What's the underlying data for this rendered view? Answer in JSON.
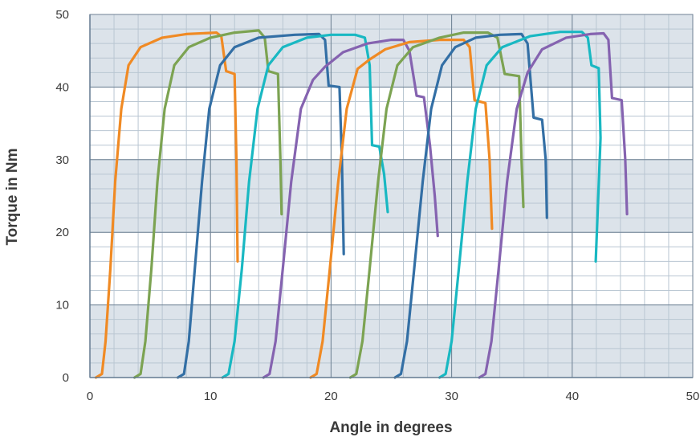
{
  "chart_data": {
    "type": "line",
    "title": "",
    "xlabel": "Angle in degrees",
    "ylabel": "Torque in Nm",
    "xlim": [
      0,
      50
    ],
    "ylim": [
      0,
      50
    ],
    "x_ticks": [
      "0",
      "10",
      "20",
      "30",
      "40",
      "50"
    ],
    "y_ticks": [
      "0",
      "10",
      "20",
      "30",
      "40",
      "50"
    ],
    "grid": true,
    "legend": "none",
    "colors": {
      "band": "#dce3ea",
      "grid_major": "#6f8294",
      "grid_minor": "#b9c6d2",
      "orange": "#f08a24",
      "green": "#7ca352",
      "blue": "#336fa5",
      "teal": "#19b8c2",
      "purple": "#8563b0"
    },
    "series": [
      {
        "color": "orange",
        "points": [
          [
            0.5,
            0
          ],
          [
            1.0,
            0.5
          ],
          [
            1.3,
            5
          ],
          [
            1.7,
            15
          ],
          [
            2.1,
            27
          ],
          [
            2.6,
            37
          ],
          [
            3.2,
            43
          ],
          [
            4.2,
            45.5
          ],
          [
            6,
            46.8
          ],
          [
            8,
            47.3
          ],
          [
            10.5,
            47.5
          ],
          [
            10.9,
            47
          ],
          [
            11.3,
            42.2
          ],
          [
            12.0,
            41.8
          ],
          [
            12.15,
            30
          ],
          [
            12.25,
            16
          ]
        ]
      },
      {
        "color": "green",
        "points": [
          [
            3.7,
            0
          ],
          [
            4.2,
            0.5
          ],
          [
            4.6,
            5
          ],
          [
            5.1,
            15
          ],
          [
            5.6,
            27
          ],
          [
            6.2,
            37
          ],
          [
            7.0,
            43
          ],
          [
            8.2,
            45.5
          ],
          [
            10,
            46.8
          ],
          [
            12,
            47.5
          ],
          [
            14,
            47.8
          ],
          [
            14.5,
            46.8
          ],
          [
            14.8,
            42.2
          ],
          [
            15.6,
            41.8
          ],
          [
            15.8,
            30
          ],
          [
            15.9,
            22.5
          ]
        ]
      },
      {
        "color": "blue",
        "points": [
          [
            7.3,
            0
          ],
          [
            7.8,
            0.5
          ],
          [
            8.2,
            5
          ],
          [
            8.7,
            15
          ],
          [
            9.3,
            27
          ],
          [
            9.9,
            37
          ],
          [
            10.8,
            43
          ],
          [
            12,
            45.5
          ],
          [
            14,
            46.8
          ],
          [
            17,
            47.2
          ],
          [
            19,
            47.3
          ],
          [
            19.5,
            46.5
          ],
          [
            19.8,
            40.2
          ],
          [
            20.7,
            40
          ],
          [
            20.9,
            30
          ],
          [
            21.05,
            17
          ]
        ]
      },
      {
        "color": "teal",
        "points": [
          [
            11.0,
            0
          ],
          [
            11.5,
            0.5
          ],
          [
            12.0,
            5
          ],
          [
            12.6,
            15
          ],
          [
            13.2,
            27
          ],
          [
            13.9,
            37
          ],
          [
            14.8,
            43
          ],
          [
            16,
            45.5
          ],
          [
            18,
            46.8
          ],
          [
            20,
            47.2
          ],
          [
            22,
            47.2
          ],
          [
            22.8,
            46.8
          ],
          [
            23.2,
            43
          ],
          [
            23.4,
            32
          ],
          [
            24,
            31.8
          ],
          [
            24.4,
            28
          ],
          [
            24.7,
            22.8
          ]
        ]
      },
      {
        "color": "purple",
        "points": [
          [
            14.4,
            0
          ],
          [
            14.9,
            0.5
          ],
          [
            15.4,
            5
          ],
          [
            16,
            15
          ],
          [
            16.7,
            27
          ],
          [
            17.5,
            37
          ],
          [
            18.5,
            41
          ],
          [
            19.5,
            42.8
          ],
          [
            21,
            44.8
          ],
          [
            23,
            46
          ],
          [
            25,
            46.5
          ],
          [
            26,
            46.5
          ],
          [
            26.5,
            45
          ],
          [
            27.1,
            38.8
          ],
          [
            27.7,
            38.6
          ],
          [
            28.2,
            32
          ],
          [
            28.6,
            25
          ],
          [
            28.85,
            19.5
          ]
        ]
      },
      {
        "color": "orange",
        "points": [
          [
            18.3,
            0
          ],
          [
            18.8,
            0.5
          ],
          [
            19.3,
            5
          ],
          [
            19.9,
            15
          ],
          [
            20.6,
            27
          ],
          [
            21.3,
            37
          ],
          [
            22.2,
            42.5
          ],
          [
            23.2,
            43.8
          ],
          [
            24.5,
            45.2
          ],
          [
            26.5,
            46.2
          ],
          [
            29,
            46.5
          ],
          [
            31,
            46.5
          ],
          [
            31.5,
            45.5
          ],
          [
            31.9,
            38.2
          ],
          [
            32.8,
            37.8
          ],
          [
            33.15,
            30
          ],
          [
            33.35,
            20.5
          ]
        ]
      },
      {
        "color": "green",
        "points": [
          [
            21.6,
            0
          ],
          [
            22.1,
            0.5
          ],
          [
            22.6,
            5
          ],
          [
            23.2,
            15
          ],
          [
            23.9,
            27
          ],
          [
            24.6,
            37
          ],
          [
            25.5,
            43
          ],
          [
            26.8,
            45.5
          ],
          [
            29,
            46.8
          ],
          [
            31,
            47.5
          ],
          [
            33,
            47.5
          ],
          [
            33.8,
            46.8
          ],
          [
            34.4,
            41.8
          ],
          [
            35.6,
            41.5
          ],
          [
            35.8,
            30
          ],
          [
            35.95,
            23.5
          ]
        ]
      },
      {
        "color": "blue",
        "points": [
          [
            25.3,
            0
          ],
          [
            25.8,
            0.5
          ],
          [
            26.3,
            5
          ],
          [
            26.9,
            15
          ],
          [
            27.6,
            27
          ],
          [
            28.3,
            37
          ],
          [
            29.2,
            43
          ],
          [
            30.3,
            45.5
          ],
          [
            32,
            46.8
          ],
          [
            34,
            47.2
          ],
          [
            35.8,
            47.3
          ],
          [
            36.3,
            46
          ],
          [
            36.8,
            35.8
          ],
          [
            37.5,
            35.5
          ],
          [
            37.8,
            30
          ],
          [
            37.9,
            22
          ]
        ]
      },
      {
        "color": "teal",
        "points": [
          [
            29.0,
            0
          ],
          [
            29.5,
            0.5
          ],
          [
            30.0,
            5
          ],
          [
            30.6,
            15
          ],
          [
            31.3,
            27
          ],
          [
            32,
            37
          ],
          [
            32.9,
            43
          ],
          [
            34.2,
            45.5
          ],
          [
            36.5,
            47
          ],
          [
            39,
            47.6
          ],
          [
            40.8,
            47.6
          ],
          [
            41.3,
            46.8
          ],
          [
            41.6,
            43
          ],
          [
            42.2,
            42.6
          ],
          [
            42.35,
            33
          ],
          [
            41.95,
            16
          ]
        ]
      },
      {
        "color": "purple",
        "points": [
          [
            32.3,
            0
          ],
          [
            32.8,
            0.5
          ],
          [
            33.3,
            5
          ],
          [
            33.9,
            15
          ],
          [
            34.6,
            27
          ],
          [
            35.4,
            37
          ],
          [
            36.3,
            42
          ],
          [
            37.5,
            45.2
          ],
          [
            39.5,
            46.8
          ],
          [
            41.5,
            47.3
          ],
          [
            42.6,
            47.4
          ],
          [
            43,
            46.5
          ],
          [
            43.3,
            38.5
          ],
          [
            44.1,
            38.2
          ],
          [
            44.4,
            30
          ],
          [
            44.55,
            22.5
          ]
        ]
      }
    ]
  }
}
